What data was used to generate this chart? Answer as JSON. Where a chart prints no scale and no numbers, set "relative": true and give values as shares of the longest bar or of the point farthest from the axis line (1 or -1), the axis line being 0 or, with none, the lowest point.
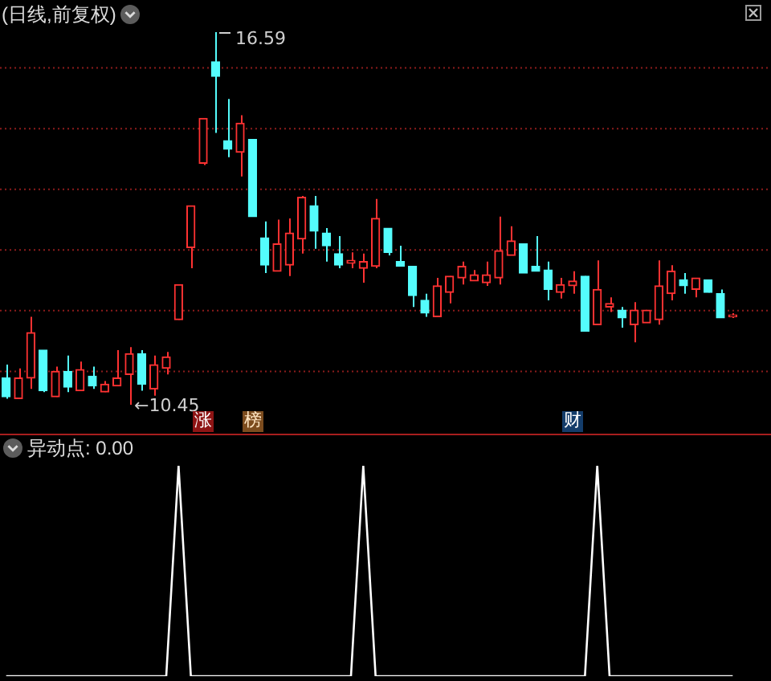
{
  "chart_data": [
    {
      "type": "candlestick",
      "title": "(日线,前复权)",
      "categories": [
        null,
        null,
        null,
        null,
        null,
        null,
        null,
        null,
        null,
        null,
        null,
        null,
        null,
        null,
        null,
        null,
        null,
        null,
        null,
        null,
        null,
        null,
        null,
        null,
        null,
        null,
        null,
        null,
        null,
        null,
        null,
        null,
        null,
        null,
        null,
        null,
        null,
        null,
        null,
        null,
        null,
        null,
        null,
        null,
        null,
        null,
        null,
        null,
        null,
        null,
        null,
        null,
        null,
        null,
        null,
        null,
        null,
        null,
        null,
        null
      ],
      "ohlc": [
        [
          10.89,
          11.11,
          10.55,
          10.58
        ],
        [
          10.55,
          11.05,
          10.55,
          10.89
        ],
        [
          10.89,
          11.9,
          10.71,
          11.64
        ],
        [
          11.35,
          11.35,
          10.66,
          10.68
        ],
        [
          10.58,
          11.08,
          10.58,
          11.0
        ],
        [
          11.0,
          11.26,
          10.66,
          10.74
        ],
        [
          10.68,
          11.16,
          10.68,
          11.03
        ],
        [
          10.92,
          11.08,
          10.71,
          10.76
        ],
        [
          10.66,
          10.84,
          10.66,
          10.79
        ],
        [
          10.76,
          11.35,
          10.76,
          10.89
        ],
        [
          10.95,
          11.4,
          10.45,
          11.29
        ],
        [
          11.29,
          11.35,
          10.68,
          10.79
        ],
        [
          10.71,
          11.26,
          10.6,
          11.11
        ],
        [
          11.05,
          11.32,
          10.95,
          11.24
        ],
        [
          11.85,
          12.43,
          11.85,
          12.43
        ],
        [
          13.04,
          13.73,
          12.7,
          13.73
        ],
        [
          14.43,
          15.17,
          14.4,
          15.17
        ],
        [
          16.1,
          16.59,
          14.93,
          15.86
        ],
        [
          14.8,
          15.49,
          14.53,
          14.66
        ],
        [
          14.61,
          15.22,
          14.21,
          15.09
        ],
        [
          14.82,
          14.82,
          13.55,
          13.55
        ],
        [
          13.2,
          13.47,
          12.62,
          12.75
        ],
        [
          12.65,
          13.5,
          12.65,
          13.1
        ],
        [
          12.75,
          13.52,
          12.57,
          13.28
        ],
        [
          13.18,
          13.89,
          12.94,
          13.87
        ],
        [
          13.73,
          13.89,
          13.02,
          13.31
        ],
        [
          13.28,
          13.36,
          12.81,
          13.07
        ],
        [
          12.94,
          13.23,
          12.7,
          12.75
        ],
        [
          12.78,
          12.96,
          12.7,
          12.83
        ],
        [
          12.7,
          12.94,
          12.46,
          12.81
        ],
        [
          12.73,
          13.84,
          12.7,
          13.52
        ],
        [
          13.36,
          13.36,
          12.91,
          12.96
        ],
        [
          12.81,
          13.07,
          12.73,
          12.73
        ],
        [
          12.73,
          12.73,
          12.06,
          12.25
        ],
        [
          12.17,
          12.28,
          11.9,
          11.96
        ],
        [
          11.9,
          12.54,
          11.9,
          12.41
        ],
        [
          12.3,
          12.57,
          12.12,
          12.57
        ],
        [
          12.54,
          12.81,
          12.43,
          12.73
        ],
        [
          12.49,
          12.67,
          12.49,
          12.59
        ],
        [
          12.46,
          12.81,
          12.41,
          12.59
        ],
        [
          12.54,
          13.55,
          12.43,
          12.99
        ],
        [
          12.91,
          13.39,
          12.91,
          13.15
        ],
        [
          13.1,
          13.1,
          12.62,
          12.62
        ],
        [
          12.73,
          13.23,
          12.65,
          12.65
        ],
        [
          12.67,
          12.81,
          12.17,
          12.35
        ],
        [
          12.3,
          12.54,
          12.2,
          12.43
        ],
        [
          12.41,
          12.65,
          12.28,
          12.49
        ],
        [
          12.57,
          12.57,
          11.66,
          11.66
        ],
        [
          11.77,
          12.83,
          11.77,
          12.35
        ],
        [
          12.06,
          12.22,
          11.98,
          12.12
        ],
        [
          12.01,
          12.06,
          11.72,
          11.88
        ],
        [
          11.77,
          12.14,
          11.48,
          12.01
        ],
        [
          11.8,
          12.01,
          11.8,
          12.01
        ],
        [
          11.85,
          12.83,
          11.77,
          12.41
        ],
        [
          12.28,
          12.75,
          12.17,
          12.65
        ],
        [
          12.51,
          12.62,
          12.28,
          12.41
        ],
        [
          12.35,
          12.54,
          12.22,
          12.54
        ],
        [
          12.51,
          12.51,
          12.3,
          12.3
        ],
        [
          12.28,
          12.35,
          11.88,
          11.88
        ],
        [
          11.9,
          11.96,
          11.88,
          11.93
        ]
      ],
      "colors": [
        "#54fcfc",
        "#ff3232",
        "#ff3232",
        "#54fcfc",
        "#ff3232",
        "#54fcfc",
        "#ff3232",
        "#54fcfc",
        "#ff3232",
        "#ff3232",
        "#ff3232",
        "#54fcfc",
        "#ff3232",
        "#ff3232",
        "#ff3232",
        "#ff3232",
        "#ff3232",
        "#54fcfc",
        "#54fcfc",
        "#ff3232",
        "#54fcfc",
        "#54fcfc",
        "#ff3232",
        "#ff3232",
        "#ff3232",
        "#54fcfc",
        "#54fcfc",
        "#54fcfc",
        "#ff3232",
        "#ff3232",
        "#ff3232",
        "#54fcfc",
        "#54fcfc",
        "#54fcfc",
        "#54fcfc",
        "#ff3232",
        "#ff3232",
        "#ff3232",
        "#ff3232",
        "#ff3232",
        "#ff3232",
        "#ff3232",
        "#54fcfc",
        "#54fcfc",
        "#54fcfc",
        "#ff3232",
        "#ff3232",
        "#54fcfc",
        "#ff3232",
        "#ff3232",
        "#54fcfc",
        "#ff3232",
        "#ff3232",
        "#ff3232",
        "#ff3232",
        "#54fcfc",
        "#ff3232",
        "#54fcfc",
        "#54fcfc",
        "#ff3232"
      ],
      "yticks": [
        {
          "value": 11,
          "label": null
        },
        {
          "value": 12,
          "label": null
        },
        {
          "value": 13,
          "label": null
        },
        {
          "value": 14,
          "label": null
        },
        {
          "value": 15,
          "label": null
        },
        {
          "value": 16,
          "label": null
        }
      ],
      "grid": "y",
      "tick_labels": false,
      "annotations": [
        "16.59",
        "←10.45",
        "涨",
        "榜",
        "财"
      ]
    },
    {
      "type": "line",
      "title": "异动点: 0.00",
      "categories": [
        null,
        null,
        null,
        null,
        null,
        null,
        null,
        null,
        null,
        null,
        null,
        null,
        null,
        null,
        null,
        null,
        null,
        null,
        null,
        null,
        null,
        null,
        null,
        null,
        null,
        null,
        null,
        null,
        null,
        null,
        null,
        null,
        null,
        null,
        null,
        null,
        null,
        null,
        null,
        null,
        null,
        null,
        null,
        null,
        null,
        null,
        null,
        null,
        null,
        null,
        null,
        null,
        null,
        null,
        null,
        null,
        null,
        null,
        null,
        null
      ],
      "series": [
        {
          "color": "#ffffff",
          "values": [
            0,
            0,
            0,
            0,
            0,
            0,
            0,
            0,
            0,
            0,
            0,
            0,
            0,
            0,
            1,
            0,
            0,
            0,
            0,
            0,
            0,
            0,
            0,
            0,
            0,
            0,
            0,
            0,
            0,
            1,
            0,
            0,
            0,
            0,
            0,
            0,
            0,
            0,
            0,
            0,
            0,
            0,
            0,
            0,
            0,
            0,
            0,
            0,
            1,
            0,
            0,
            0,
            0,
            0,
            0,
            0,
            0,
            0,
            0,
            0
          ]
        }
      ],
      "relative": true,
      "tick_labels": false,
      "marker": "none"
    }
  ]
}
